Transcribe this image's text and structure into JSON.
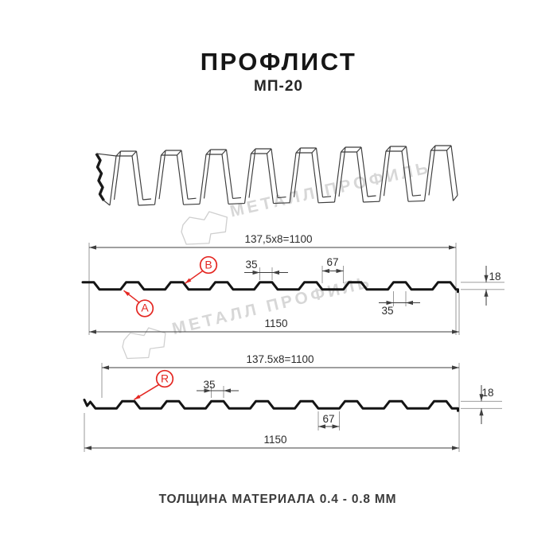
{
  "title": "ПРОФЛИСТ",
  "subtitle": "МП-20",
  "footer_note": "ТОЛЩИНА МАТЕРИАЛА 0.4 - 0.8 ММ",
  "watermark": {
    "text": "МЕТАЛЛ ПРОФИЛЬ"
  },
  "colors": {
    "accent_red": "#e42722",
    "profile_black": "#141414",
    "dim_line": "#3f3f3f",
    "watermark_gray": "#d7d7d7"
  },
  "section_top": {
    "dim_rib_formula": "137,5x8=1100",
    "dim_total_width": "1150",
    "dim_rib_top": "35",
    "dim_valley": "67",
    "dim_height": "18",
    "dim_rib_bottom": "35",
    "callout_a": "A",
    "callout_b": "B"
  },
  "section_bottom": {
    "dim_rib_formula": "137.5x8=1100",
    "dim_total_width": "1150",
    "dim_rib_top": "35",
    "dim_valley": "67",
    "dim_height": "18",
    "callout_r": "R"
  }
}
